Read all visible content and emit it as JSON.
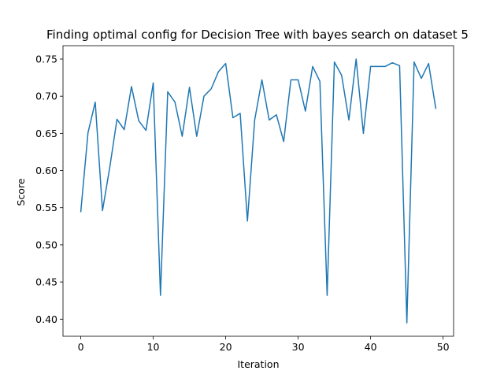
{
  "chart_data": {
    "type": "line",
    "title": "Finding optimal config for Decision Tree with bayes search on dataset 5",
    "xlabel": "Iteration",
    "ylabel": "Score",
    "xlim": [
      -2.45,
      51.45
    ],
    "ylim": [
      0.377,
      0.768
    ],
    "xticks": [
      0,
      10,
      20,
      30,
      40,
      50
    ],
    "yticks": [
      0.4,
      0.45,
      0.5,
      0.55,
      0.6,
      0.65,
      0.7,
      0.75
    ],
    "ytick_labels": [
      "0.40",
      "0.45",
      "0.50",
      "0.55",
      "0.60",
      "0.65",
      "0.70",
      "0.75"
    ],
    "grid": false,
    "series": [
      {
        "color": "#1f77b4",
        "x": [
          0,
          1,
          2,
          3,
          4,
          5,
          6,
          7,
          8,
          9,
          10,
          11,
          12,
          13,
          14,
          15,
          16,
          17,
          18,
          19,
          20,
          21,
          22,
          23,
          24,
          25,
          26,
          27,
          28,
          29,
          30,
          31,
          32,
          33,
          34,
          35,
          36,
          37,
          38,
          39,
          40,
          41,
          42,
          43,
          44,
          45,
          46,
          47,
          48,
          49
        ],
        "y": [
          0.544,
          0.651,
          0.692,
          0.546,
          0.604,
          0.669,
          0.655,
          0.713,
          0.667,
          0.654,
          0.718,
          0.432,
          0.706,
          0.692,
          0.646,
          0.712,
          0.646,
          0.7,
          0.71,
          0.733,
          0.744,
          0.671,
          0.677,
          0.532,
          0.668,
          0.722,
          0.668,
          0.675,
          0.639,
          0.722,
          0.722,
          0.68,
          0.74,
          0.72,
          0.432,
          0.746,
          0.728,
          0.668,
          0.75,
          0.65,
          0.74,
          0.74,
          0.74,
          0.745,
          0.741,
          0.395,
          0.746,
          0.724,
          0.744,
          0.683
        ]
      }
    ]
  }
}
